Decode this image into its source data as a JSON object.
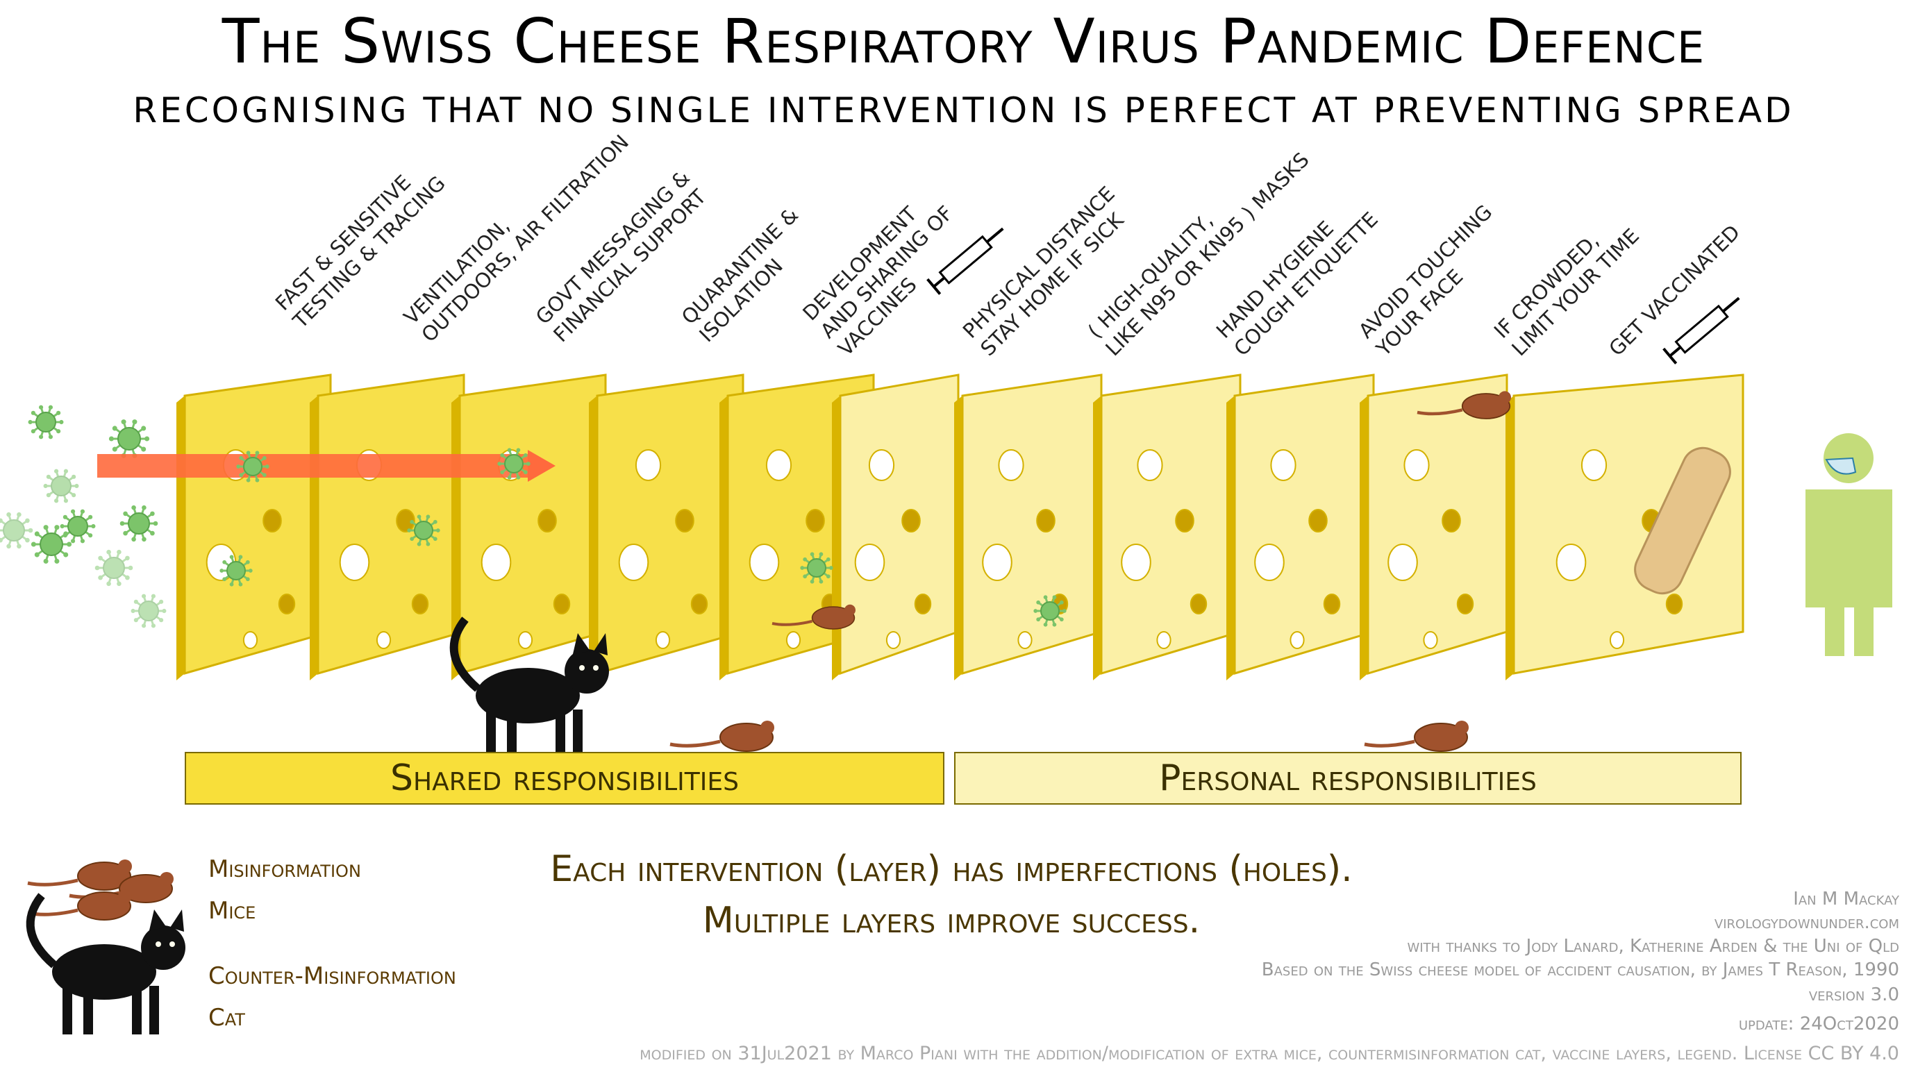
{
  "title": "The Swiss Cheese Respiratory Virus Pandemic Defence",
  "subtitle": "RECOGNISING THAT NO SINGLE INTERVENTION IS PERFECT AT PREVENTING SPREAD",
  "layers": [
    {
      "label": "Fast & sensitive\ntesting & tracing",
      "group": "shared"
    },
    {
      "label": "Ventilation,\noutdoors, air filtration",
      "group": "shared"
    },
    {
      "label": "Govt messaging &\nfinancial support",
      "group": "shared"
    },
    {
      "label": "Quarantine &\nisolation",
      "group": "shared"
    },
    {
      "label": "Development\nand sharing of\nvaccines",
      "group": "shared"
    },
    {
      "label": "Physical distance\nstay home if sick",
      "group": "personal"
    },
    {
      "label": "( high-quality,\nlike N95 or KN95 ) masks",
      "group": "personal"
    },
    {
      "label": "Hand hygiene\ncough etiquette",
      "group": "personal"
    },
    {
      "label": "Avoid touching\nyour face",
      "group": "personal"
    },
    {
      "label": "If crowded,\nlimit your time",
      "group": "personal"
    },
    {
      "label": "Get vaccinated",
      "group": "personal"
    }
  ],
  "bands": {
    "shared": "Shared responsibilities",
    "personal": "Personal responsibilities"
  },
  "legend": {
    "mice_line1": "Misinformation",
    "mice_line2": "Mice",
    "cat_line1": "Counter-Misinformation",
    "cat_line2": "Cat"
  },
  "message": {
    "line1": "Each intervention (layer) has imperfections (holes).",
    "line2": "Multiple layers improve success."
  },
  "credits": {
    "author": "Ian M Mackay",
    "site": "virologydownunder.com",
    "thanks": "with thanks to Jody Lanard, Katherine Arden & the Uni of Qld",
    "based_on": "Based on the Swiss cheese model of accident causation, by James T Reason, 1990",
    "version": "version 3.0",
    "update": "update: 24Oct2020"
  },
  "footer": "modified on 31Jul2021 by Marco Piani with the addition/modification of extra mice, countermisinformation cat, vaccine layers, legend. License CC BY 4.0",
  "colors": {
    "shared_cheese": "#f7e04a",
    "personal_cheese": "#fbf0a6",
    "cheese_edge": "#d4b100",
    "virus": "#7cc46a",
    "arrow": "#ff6a3d",
    "mouse": "#a0522d",
    "cat": "#111111",
    "person": "#c4dc7a"
  }
}
